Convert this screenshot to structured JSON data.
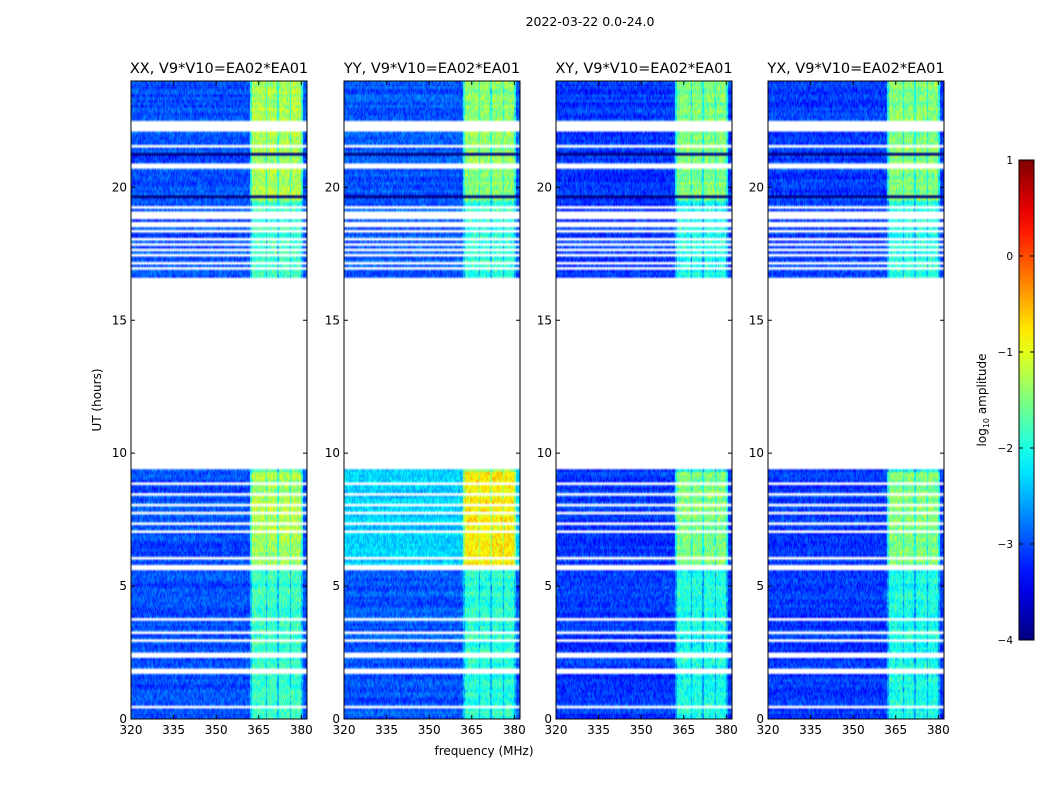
{
  "figure": {
    "suptitle": "2022-03-22 0.0-24.0"
  },
  "chart_data": {
    "type": "heatmap",
    "title": "2022-03-22 0.0-24.0",
    "xlabel": "frequency (MHz)",
    "ylabel": "UT (hours)",
    "xlim": [
      320,
      382
    ],
    "ylim": [
      0,
      24
    ],
    "x_ticks": [
      320,
      335,
      350,
      365,
      380
    ],
    "y_ticks": [
      0,
      5,
      10,
      15,
      20
    ],
    "panels": [
      {
        "title": "XX, V9*V10=EA02*EA01",
        "rfi_strength": 1.0,
        "bg_level": -3.0,
        "top_band_level": -3.05
      },
      {
        "title": "YY, V9*V10=EA02*EA01",
        "rfi_strength": 0.9,
        "bg_level": -2.95,
        "top_band_level": -2.3
      },
      {
        "title": "XY, V9*V10=EA02*EA01",
        "rfi_strength": 0.95,
        "bg_level": -3.1,
        "top_band_level": -3.1
      },
      {
        "title": "YX, V9*V10=EA02*EA01",
        "rfi_strength": 0.95,
        "bg_level": -3.1,
        "top_band_level": -3.1
      }
    ],
    "rfi_band_mhz": [
      362,
      380
    ],
    "rfi_channels_mhz": [
      {
        "from": 362.5,
        "to": 367.5
      },
      {
        "from": 367.9,
        "to": 371.5
      },
      {
        "from": 372.2,
        "to": 376.0
      },
      {
        "from": 376.4,
        "to": 380.0
      }
    ],
    "data_gaps_hours": [
      {
        "from": 9.35,
        "to": 16.6
      },
      {
        "from": 0.4,
        "to": 0.5
      },
      {
        "from": 1.65,
        "to": 1.9
      },
      {
        "from": 2.35,
        "to": 2.45
      },
      {
        "from": 2.9,
        "to": 3.0
      },
      {
        "from": 3.25,
        "to": 3.32
      },
      {
        "from": 3.48,
        "to": 3.55
      },
      {
        "from": 3.72,
        "to": 3.8
      },
      {
        "from": 3.88,
        "to": 3.93
      },
      {
        "from": 5.55,
        "to": 5.75
      },
      {
        "from": 6.05,
        "to": 6.12
      },
      {
        "from": 7.0,
        "to": 7.07
      },
      {
        "from": 7.35,
        "to": 7.42
      },
      {
        "from": 7.7,
        "to": 7.77
      },
      {
        "from": 8.05,
        "to": 8.12
      },
      {
        "from": 8.45,
        "to": 8.52
      },
      {
        "from": 8.85,
        "to": 8.92
      },
      {
        "from": 16.9,
        "to": 16.96
      },
      {
        "from": 17.15,
        "to": 17.2
      },
      {
        "from": 17.45,
        "to": 17.5
      },
      {
        "from": 17.65,
        "to": 17.7
      },
      {
        "from": 17.85,
        "to": 17.9
      },
      {
        "from": 18.0,
        "to": 18.05
      },
      {
        "from": 18.3,
        "to": 18.35
      },
      {
        "from": 18.55,
        "to": 18.65
      },
      {
        "from": 18.8,
        "to": 19.05
      },
      {
        "from": 19.25,
        "to": 19.3
      },
      {
        "from": 20.75,
        "to": 20.85
      },
      {
        "from": 21.55,
        "to": 21.62
      },
      {
        "from": 22.15,
        "to": 22.35
      },
      {
        "from": 22.45,
        "to": 22.52
      }
    ],
    "colorbar": {
      "label": "log10 amplitude",
      "min": -4,
      "max": 1,
      "ticks": [
        -4,
        -3,
        -2,
        -1,
        0,
        1
      ],
      "colormap": "jet"
    }
  }
}
